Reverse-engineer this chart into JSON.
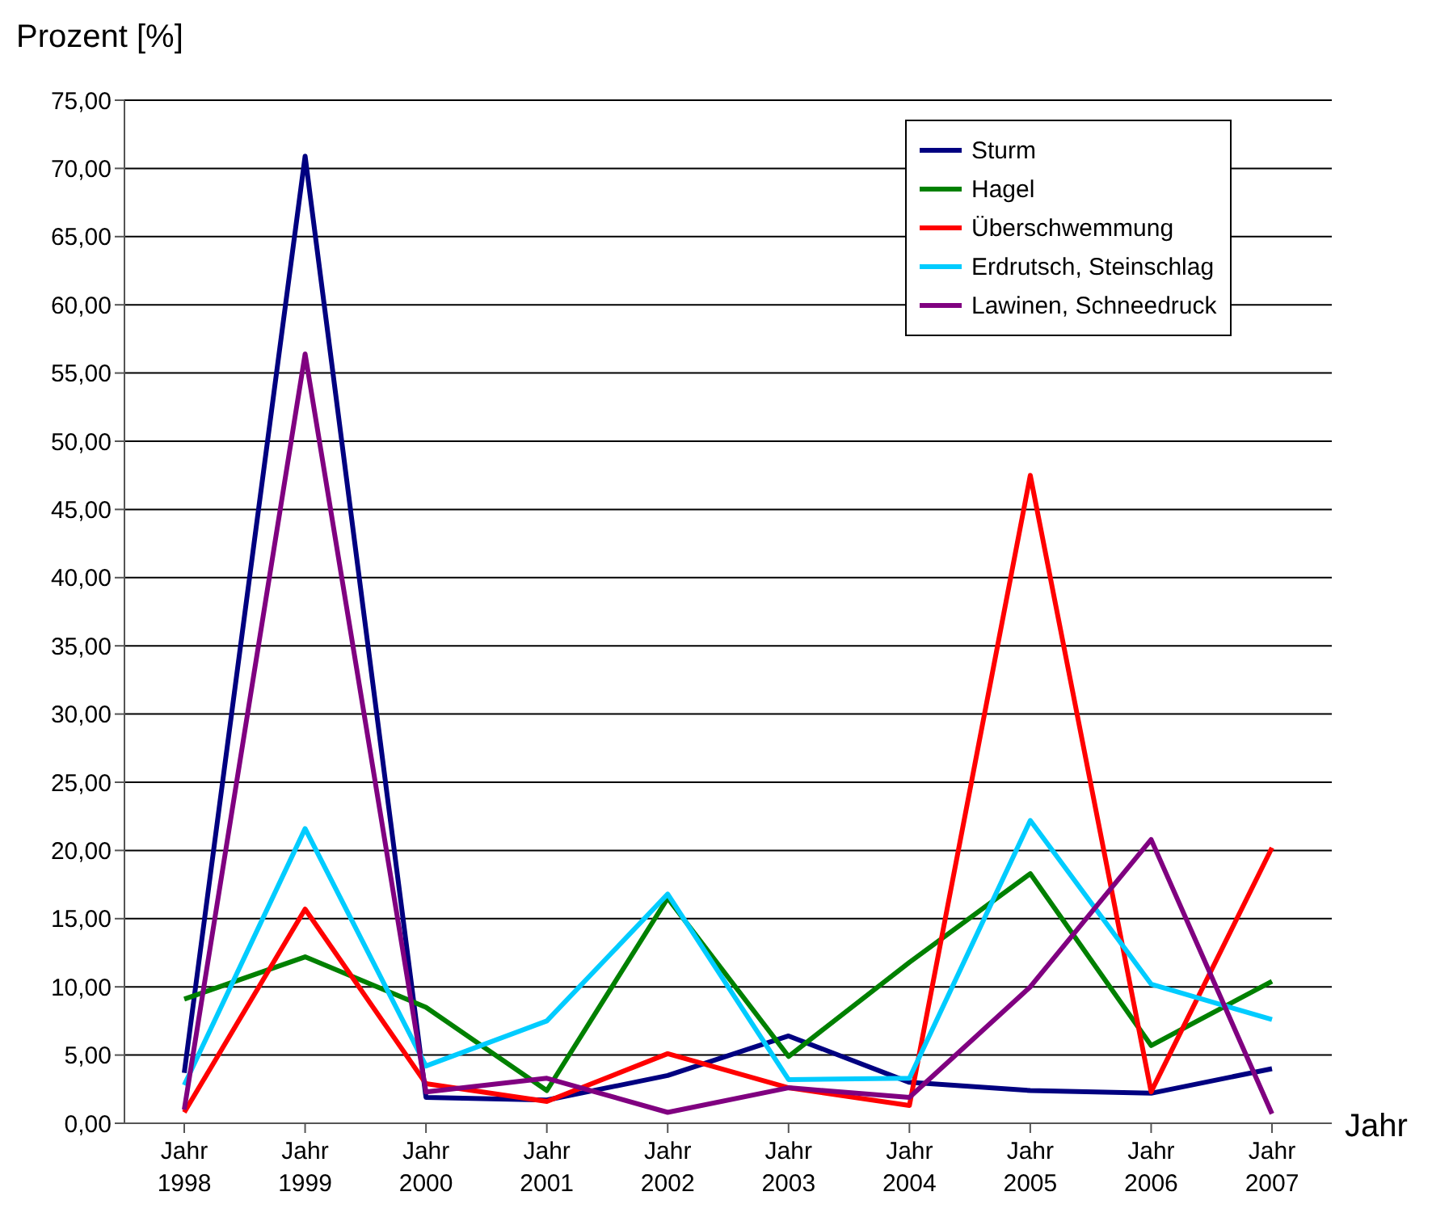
{
  "chart_data": {
    "type": "line",
    "xlabel": "Jahr",
    "ylabel": "Prozent [%]",
    "categories": [
      "Jahr 1998",
      "Jahr 1999",
      "Jahr 2000",
      "Jahr 2001",
      "Jahr 2002",
      "Jahr 2003",
      "Jahr 2004",
      "Jahr 2005",
      "Jahr 2006",
      "Jahr 2007"
    ],
    "series": [
      {
        "name": "Sturm",
        "color": "#000080",
        "values": [
          3.7,
          70.9,
          1.9,
          1.7,
          3.5,
          6.4,
          3.0,
          2.4,
          2.2,
          4.0
        ]
      },
      {
        "name": "Hagel",
        "color": "#008000",
        "values": [
          9.1,
          12.2,
          8.5,
          2.4,
          16.5,
          4.9,
          11.8,
          18.3,
          5.7,
          10.4
        ]
      },
      {
        "name": "Überschwemmung",
        "color": "#ff0000",
        "values": [
          0.8,
          15.7,
          2.9,
          1.6,
          5.1,
          2.6,
          1.3,
          47.5,
          2.3,
          20.2
        ]
      },
      {
        "name": "Erdrutsch, Steinschlag",
        "color": "#00ccff",
        "values": [
          2.8,
          21.6,
          4.2,
          7.5,
          16.8,
          3.2,
          3.3,
          22.2,
          10.2,
          7.6
        ]
      },
      {
        "name": "Lawinen, Schneedruck",
        "color": "#800080",
        "values": [
          1.0,
          56.4,
          2.3,
          3.3,
          0.8,
          2.6,
          1.9,
          10.0,
          20.8,
          0.7
        ]
      }
    ],
    "ylim": [
      0,
      75
    ],
    "yticks": [
      {
        "value": 0,
        "label": "0,00"
      },
      {
        "value": 5,
        "label": "5,00"
      },
      {
        "value": 10,
        "label": "10,00"
      },
      {
        "value": 15,
        "label": "15,00"
      },
      {
        "value": 20,
        "label": "20,00"
      },
      {
        "value": 25,
        "label": "25,00"
      },
      {
        "value": 30,
        "label": "30,00"
      },
      {
        "value": 35,
        "label": "35,00"
      },
      {
        "value": 40,
        "label": "40,00"
      },
      {
        "value": 45,
        "label": "45,00"
      },
      {
        "value": 50,
        "label": "50,00"
      },
      {
        "value": 55,
        "label": "55,00"
      },
      {
        "value": 60,
        "label": "60,00"
      },
      {
        "value": 65,
        "label": "65,00"
      },
      {
        "value": 70,
        "label": "70,00"
      },
      {
        "value": 75,
        "label": "75,00"
      }
    ],
    "grid": "y",
    "legend": "top right",
    "marker": "none",
    "line_style": "solid"
  }
}
